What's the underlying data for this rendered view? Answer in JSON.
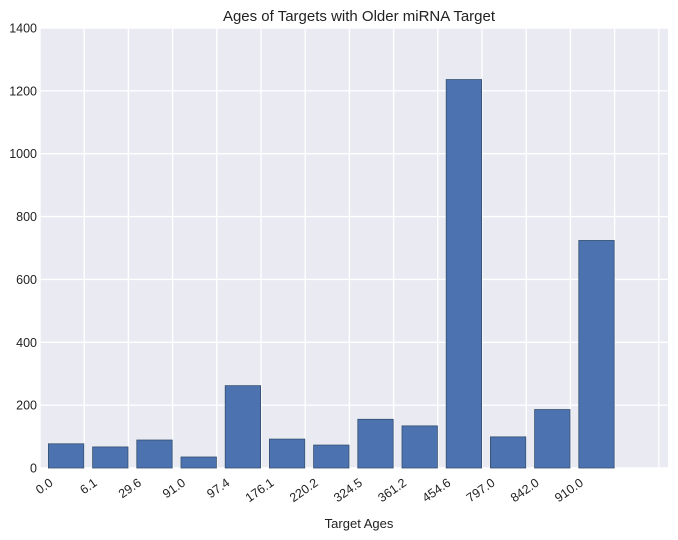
{
  "chart_data": {
    "type": "bar",
    "title": "Ages of Targets with Older miRNA Target",
    "xlabel": "Target Ages",
    "ylabel": "",
    "categories": [
      "0.0",
      "6.1",
      "29.6",
      "91.0",
      "97.4",
      "176.1",
      "220.2",
      "324.5",
      "361.2",
      "454.6",
      "797.0",
      "842.0",
      "910.0"
    ],
    "values": [
      77,
      67,
      89,
      35,
      262,
      92,
      73,
      155,
      134,
      1236,
      99,
      186,
      724
    ],
    "ylim": [
      0,
      1400
    ],
    "yticks": [
      0,
      200,
      400,
      600,
      800,
      1000,
      1200,
      1400
    ],
    "grid": true,
    "legend": "none",
    "colors": {
      "bar": "#4c72b0",
      "bar_edge": "#34506f",
      "plot_background": "#eaeaf2",
      "grid": "#ffffff"
    }
  }
}
